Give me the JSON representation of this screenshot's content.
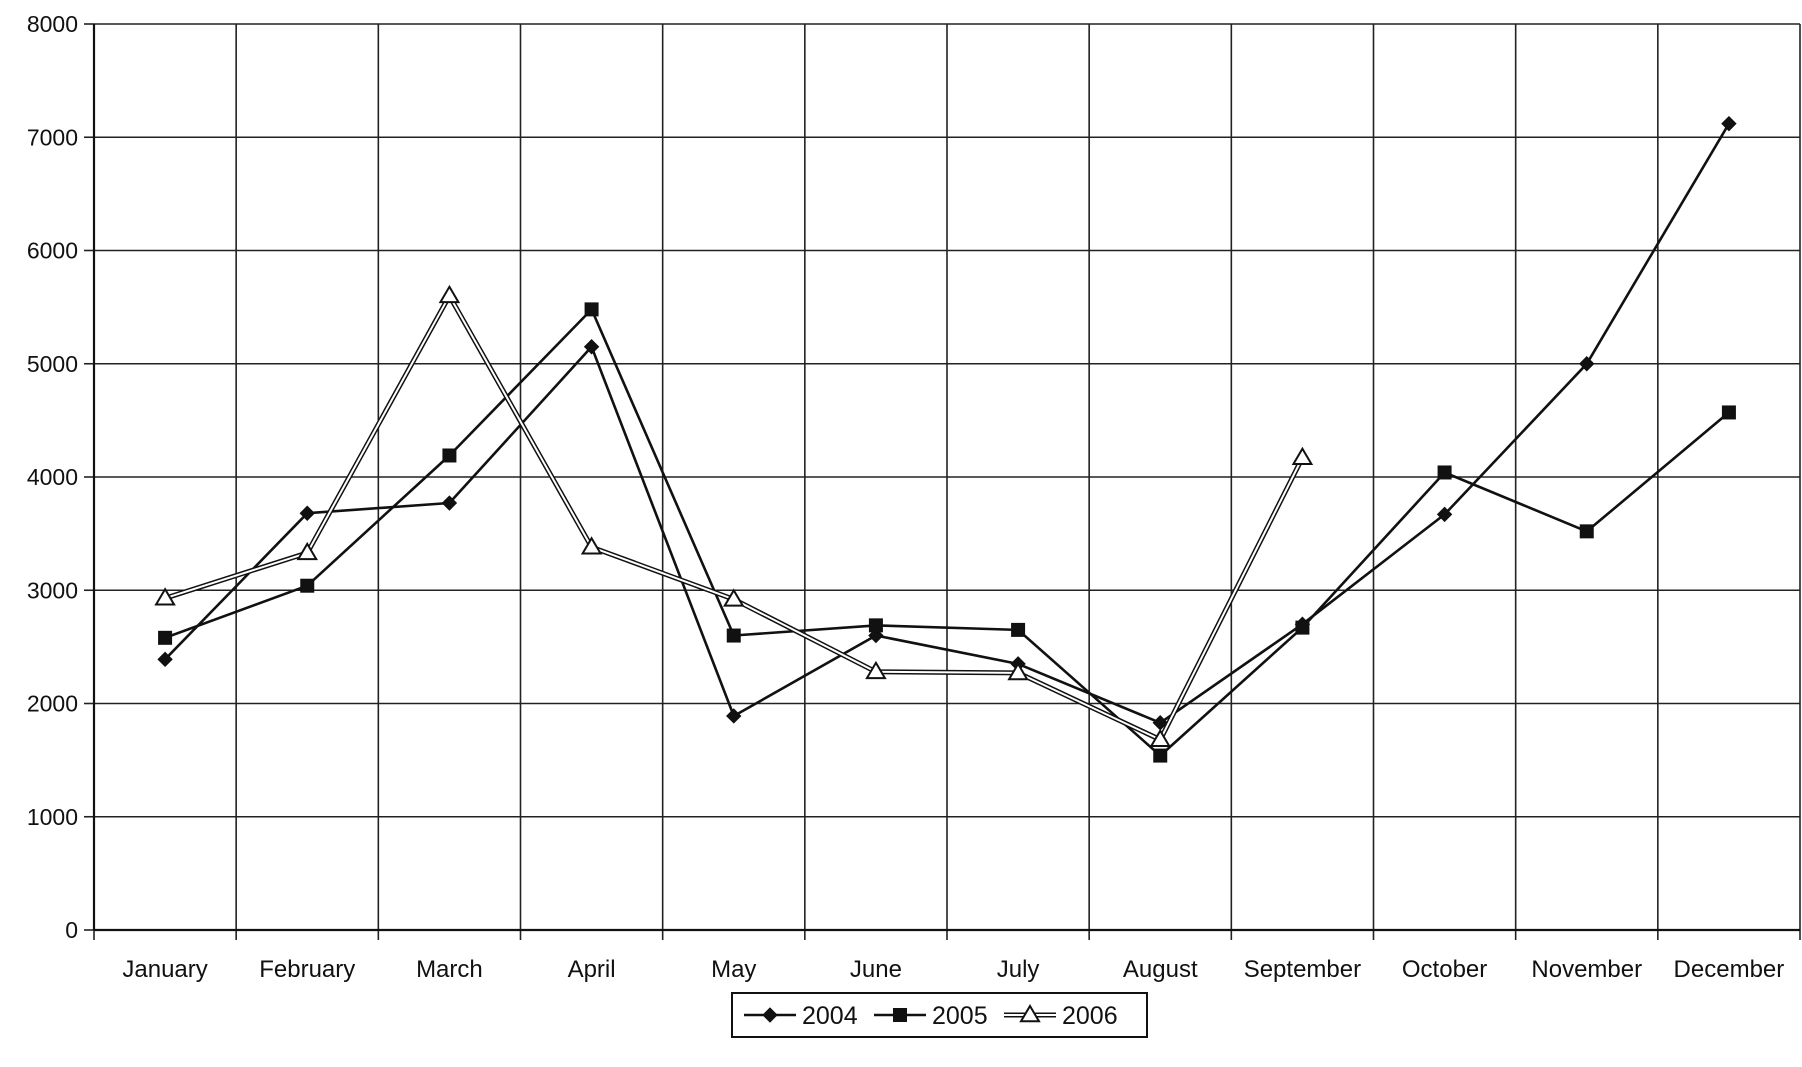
{
  "chart_data": {
    "type": "line",
    "title": "",
    "xlabel": "",
    "ylabel": "",
    "categories": [
      "January",
      "February",
      "March",
      "April",
      "May",
      "June",
      "July",
      "August",
      "September",
      "October",
      "November",
      "December"
    ],
    "ylim": [
      0,
      8000
    ],
    "yticks": [
      0,
      1000,
      2000,
      3000,
      4000,
      5000,
      6000,
      7000,
      8000
    ],
    "grid": true,
    "legend_position": "bottom",
    "series": [
      {
        "name": "2004",
        "marker": "diamond-filled",
        "color": "#111111",
        "values": [
          2390,
          3680,
          3770,
          5150,
          1890,
          2600,
          2350,
          1830,
          2700,
          3670,
          5000,
          7120
        ]
      },
      {
        "name": "2005",
        "marker": "square-filled",
        "color": "#111111",
        "values": [
          2580,
          3040,
          4190,
          5480,
          2600,
          2690,
          2650,
          1540,
          2670,
          4040,
          3520,
          4570
        ]
      },
      {
        "name": "2006",
        "marker": "triangle-open",
        "color": "#111111",
        "values": [
          2930,
          3330,
          5600,
          3380,
          2920,
          2280,
          2270,
          1680,
          4170,
          null,
          null,
          null
        ]
      }
    ]
  }
}
